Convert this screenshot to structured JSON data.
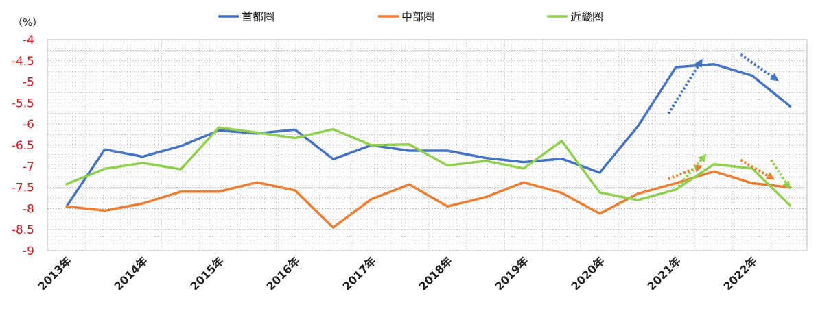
{
  "chart_data": {
    "type": "line",
    "y_unit": "（%）",
    "ylim": [
      -9,
      -4
    ],
    "yticks": [
      "-4",
      "-4.5",
      "-5",
      "-5.5",
      "-6",
      "-6.5",
      "-7",
      "-7.5",
      "-8",
      "-8.5",
      "-9"
    ],
    "x_year_labels": [
      "2013年",
      "2014年",
      "2015年",
      "2016年",
      "2017年",
      "2018年",
      "2019年",
      "2020年",
      "2021年",
      "2022年"
    ],
    "points_per_year": 2,
    "grid": true,
    "legend_position": "top",
    "series": [
      {
        "name": "首都圏",
        "color": "#4472c4",
        "values": [
          -7.95,
          -6.6,
          -6.77,
          -6.52,
          -6.15,
          -6.22,
          -6.13,
          -6.83,
          -6.5,
          -6.63,
          -6.63,
          -6.8,
          -6.9,
          -6.82,
          -7.15,
          -6.05,
          -4.65,
          -4.58,
          -4.85,
          -5.58
        ]
      },
      {
        "name": "中部圏",
        "color": "#ed7d31",
        "values": [
          -7.95,
          -8.05,
          -7.88,
          -7.6,
          -7.6,
          -7.38,
          -7.57,
          -8.45,
          -7.78,
          -7.43,
          -7.95,
          -7.73,
          -7.38,
          -7.63,
          -8.12,
          -7.65,
          -7.4,
          -7.12,
          -7.4,
          -7.5
        ]
      },
      {
        "name": "近畿圏",
        "color": "#8fd14f",
        "values": [
          -7.42,
          -7.06,
          -6.92,
          -7.07,
          -6.08,
          -6.2,
          -6.33,
          -6.12,
          -6.5,
          -6.48,
          -6.98,
          -6.87,
          -7.05,
          -6.4,
          -7.62,
          -7.8,
          -7.55,
          -6.95,
          -7.05,
          -7.93
        ]
      }
    ],
    "trend_arrows": [
      {
        "color": "#4472c4",
        "from": [
          15.8,
          -5.75
        ],
        "to": [
          16.7,
          -4.45
        ]
      },
      {
        "color": "#4472c4",
        "from": [
          17.7,
          -4.35
        ],
        "to": [
          18.7,
          -4.98
        ]
      },
      {
        "color": "#ed7d31",
        "from": [
          15.8,
          -7.3
        ],
        "to": [
          16.7,
          -6.98
        ]
      },
      {
        "color": "#8fd14f",
        "from": [
          16.0,
          -7.55
        ],
        "to": [
          16.8,
          -6.7
        ]
      },
      {
        "color": "#ed7d31",
        "from": [
          17.7,
          -6.85
        ],
        "to": [
          18.6,
          -7.32
        ]
      },
      {
        "color": "#8fd14f",
        "from": [
          18.5,
          -6.85
        ],
        "to": [
          19.0,
          -7.55
        ]
      }
    ]
  }
}
